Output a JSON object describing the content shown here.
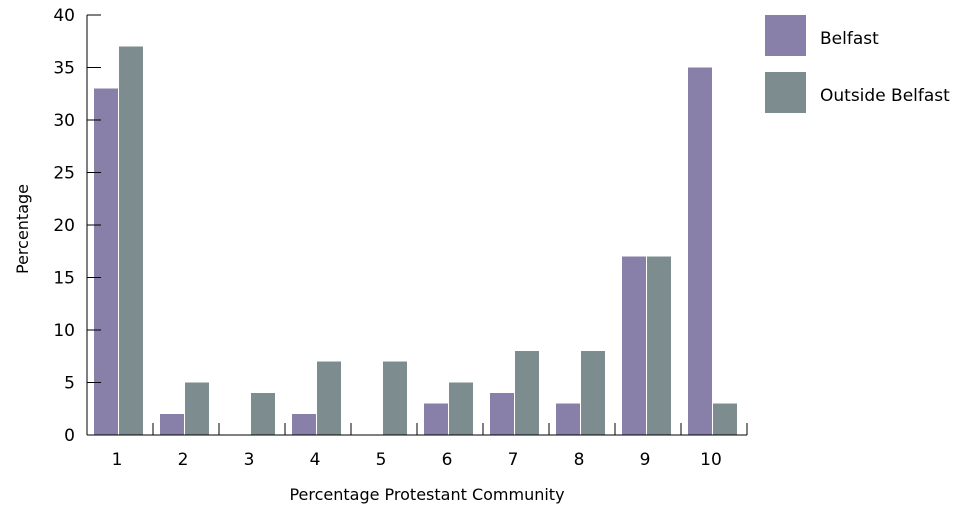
{
  "chart_data": {
    "type": "bar",
    "title": "",
    "xlabel": "Percentage Protestant Community",
    "ylabel": "Percentage",
    "categories": [
      "1",
      "2",
      "3",
      "4",
      "5",
      "6",
      "7",
      "8",
      "9",
      "10"
    ],
    "ylim": [
      0,
      40
    ],
    "yticks": [
      "0",
      "5",
      "10",
      "15",
      "20",
      "25",
      "30",
      "35",
      "40"
    ],
    "grid": false,
    "legend_position": "top-right",
    "series": [
      {
        "name": "Belfast",
        "color": "#8880a9",
        "values": [
          33,
          2,
          0,
          2,
          0,
          3,
          4,
          3,
          17,
          35
        ]
      },
      {
        "name": "Outside Belfast",
        "color": "#7c8c8f",
        "values": [
          37,
          5,
          4,
          7,
          7,
          5,
          8,
          8,
          17,
          3
        ]
      }
    ]
  }
}
